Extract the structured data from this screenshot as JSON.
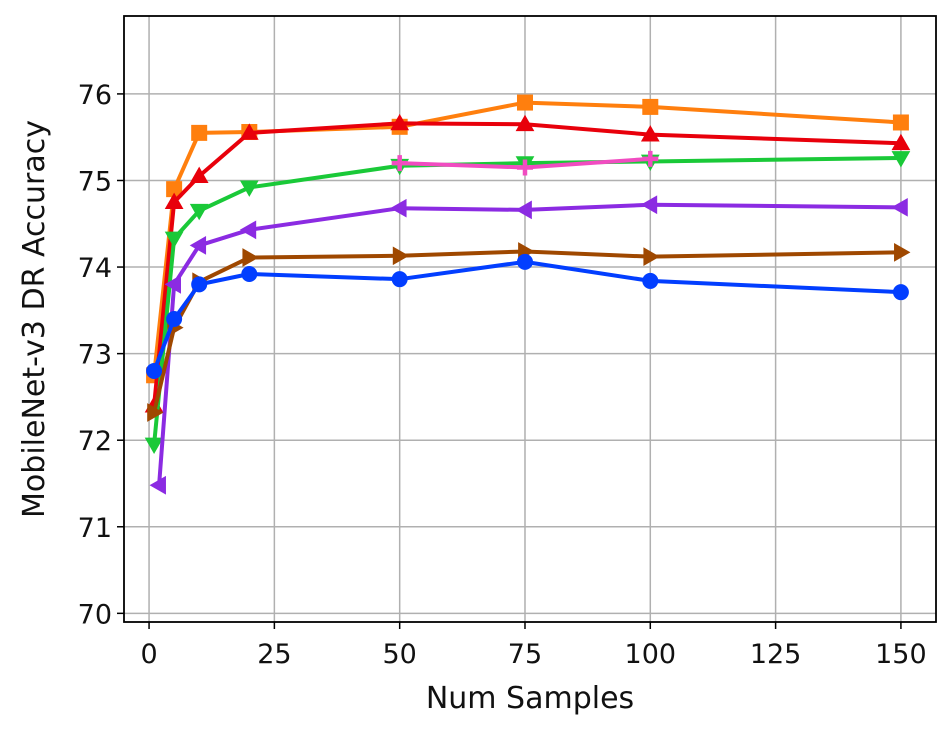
{
  "chart_data": {
    "type": "line",
    "title": "",
    "xlabel": "Num Samples",
    "ylabel": "MobileNet-v3 DR Accuracy",
    "xlim": [
      -5,
      157
    ],
    "ylim": [
      69.9,
      76.9
    ],
    "xticks": [
      0,
      25,
      50,
      75,
      100,
      125,
      150
    ],
    "yticks": [
      70,
      71,
      72,
      73,
      74,
      75,
      76
    ],
    "grid": true,
    "legend": "none",
    "series": [
      {
        "color": "#ff7f0e",
        "marker": "square",
        "x": [
          1,
          5,
          10,
          20,
          50,
          75,
          100,
          150
        ],
        "y": [
          72.75,
          74.9,
          75.55,
          75.56,
          75.62,
          75.9,
          75.85,
          75.67
        ]
      },
      {
        "color": "#e8000b",
        "marker": "triangle-up",
        "x": [
          1,
          5,
          10,
          20,
          50,
          75,
          100,
          150
        ],
        "y": [
          72.4,
          74.75,
          75.05,
          75.55,
          75.66,
          75.65,
          75.53,
          75.43
        ]
      },
      {
        "color": "#1ac938",
        "marker": "triangle-down",
        "x": [
          1,
          5,
          10,
          20,
          50,
          75,
          100,
          150
        ],
        "y": [
          71.95,
          74.33,
          74.65,
          74.92,
          75.17,
          75.2,
          75.22,
          75.26
        ]
      },
      {
        "color": "#f14cc1",
        "marker": "plus",
        "x": [
          50,
          75,
          100
        ],
        "y": [
          75.2,
          75.15,
          75.25
        ]
      },
      {
        "color": "#8b2be2",
        "marker": "triangle-left",
        "x": [
          2,
          5,
          10,
          20,
          50,
          75,
          100,
          150
        ],
        "y": [
          71.48,
          73.8,
          74.25,
          74.43,
          74.68,
          74.66,
          74.72,
          74.69
        ]
      },
      {
        "color": "#9f4800",
        "marker": "triangle-right",
        "x": [
          1,
          5,
          10,
          20,
          50,
          75,
          100,
          150
        ],
        "y": [
          72.32,
          73.3,
          73.83,
          74.11,
          74.13,
          74.18,
          74.12,
          74.17
        ]
      },
      {
        "color": "#023eff",
        "marker": "circle",
        "x": [
          1,
          5,
          10,
          20,
          50,
          75,
          100,
          150
        ],
        "y": [
          72.8,
          73.4,
          73.8,
          73.92,
          73.86,
          74.06,
          73.84,
          73.71
        ]
      }
    ]
  }
}
